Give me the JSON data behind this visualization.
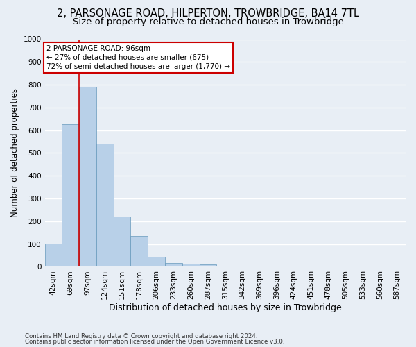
{
  "title": "2, PARSONAGE ROAD, HILPERTON, TROWBRIDGE, BA14 7TL",
  "subtitle": "Size of property relative to detached houses in Trowbridge",
  "xlabel": "Distribution of detached houses by size in Trowbridge",
  "ylabel": "Number of detached properties",
  "bar_labels": [
    "42sqm",
    "69sqm",
    "97sqm",
    "124sqm",
    "151sqm",
    "178sqm",
    "206sqm",
    "233sqm",
    "260sqm",
    "287sqm",
    "315sqm",
    "342sqm",
    "369sqm",
    "396sqm",
    "424sqm",
    "451sqm",
    "478sqm",
    "505sqm",
    "533sqm",
    "560sqm",
    "587sqm"
  ],
  "bar_values": [
    103,
    625,
    790,
    540,
    220,
    135,
    43,
    17,
    13,
    10,
    0,
    0,
    0,
    0,
    0,
    0,
    0,
    0,
    0,
    0,
    0
  ],
  "bar_color": "#b8d0e8",
  "bar_edge_color": "#6699bb",
  "annotation_line1": "2 PARSONAGE ROAD: 96sqm",
  "annotation_line2": "← 27% of detached houses are smaller (675)",
  "annotation_line3": "72% of semi-detached houses are larger (1,770) →",
  "annotation_box_color": "#ffffff",
  "annotation_box_edge": "#cc0000",
  "red_line_color": "#cc0000",
  "ylim": [
    0,
    1000
  ],
  "yticks": [
    0,
    100,
    200,
    300,
    400,
    500,
    600,
    700,
    800,
    900,
    1000
  ],
  "footer1": "Contains HM Land Registry data © Crown copyright and database right 2024.",
  "footer2": "Contains public sector information licensed under the Open Government Licence v3.0.",
  "bg_color": "#e8eef5",
  "grid_color": "#ffffff",
  "title_fontsize": 10.5,
  "subtitle_fontsize": 9.5,
  "tick_fontsize": 7.5,
  "ylabel_fontsize": 8.5,
  "xlabel_fontsize": 9
}
